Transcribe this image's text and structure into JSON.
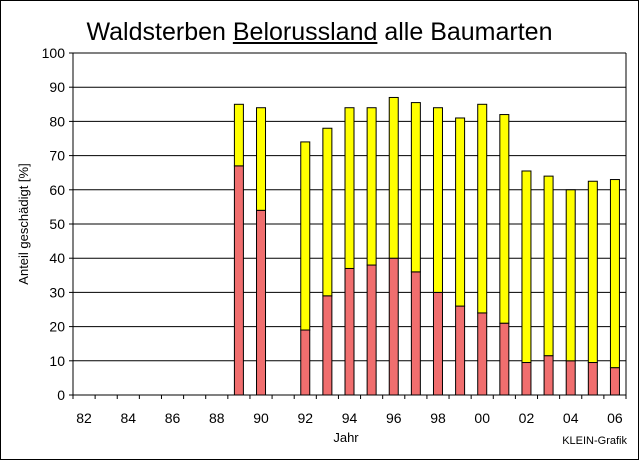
{
  "chart_data": {
    "type": "bar",
    "stacked": true,
    "title_parts": [
      "Waldsterben ",
      "Belorussland",
      " alle Baumarten"
    ],
    "xlabel": "Jahr",
    "ylabel": "Anteil geschädigt [%]",
    "ylim": [
      0,
      100
    ],
    "yticks": [
      0,
      10,
      20,
      30,
      40,
      50,
      60,
      70,
      80,
      90,
      100
    ],
    "xtick_labels": [
      "82",
      "84",
      "86",
      "88",
      "90",
      "92",
      "94",
      "96",
      "98",
      "00",
      "02",
      "04",
      "06"
    ],
    "categories": [
      "1982",
      "1983",
      "1984",
      "1985",
      "1986",
      "1987",
      "1988",
      "1989",
      "1990",
      "1991",
      "1992",
      "1993",
      "1994",
      "1995",
      "1996",
      "1997",
      "1998",
      "1999",
      "2000",
      "2001",
      "2002",
      "2003",
      "2004",
      "2005",
      "2006"
    ],
    "grid": true,
    "series": [
      {
        "color": "#f06e6e",
        "values": [
          null,
          null,
          null,
          null,
          null,
          null,
          null,
          67,
          54,
          null,
          19,
          29,
          37,
          38,
          40,
          36,
          30,
          26,
          24,
          21,
          9.5,
          11.5,
          10,
          9.5,
          8
        ]
      },
      {
        "color": "#ffff00",
        "values": [
          null,
          null,
          null,
          null,
          null,
          null,
          null,
          18,
          30,
          null,
          55,
          49,
          47,
          46,
          47,
          49.5,
          54,
          55,
          61,
          61,
          56,
          52.5,
          50,
          53,
          55
        ]
      }
    ],
    "plot_background": "#ffffff",
    "grid_color": "#000000"
  },
  "credit": "KLEIN-Grafik"
}
